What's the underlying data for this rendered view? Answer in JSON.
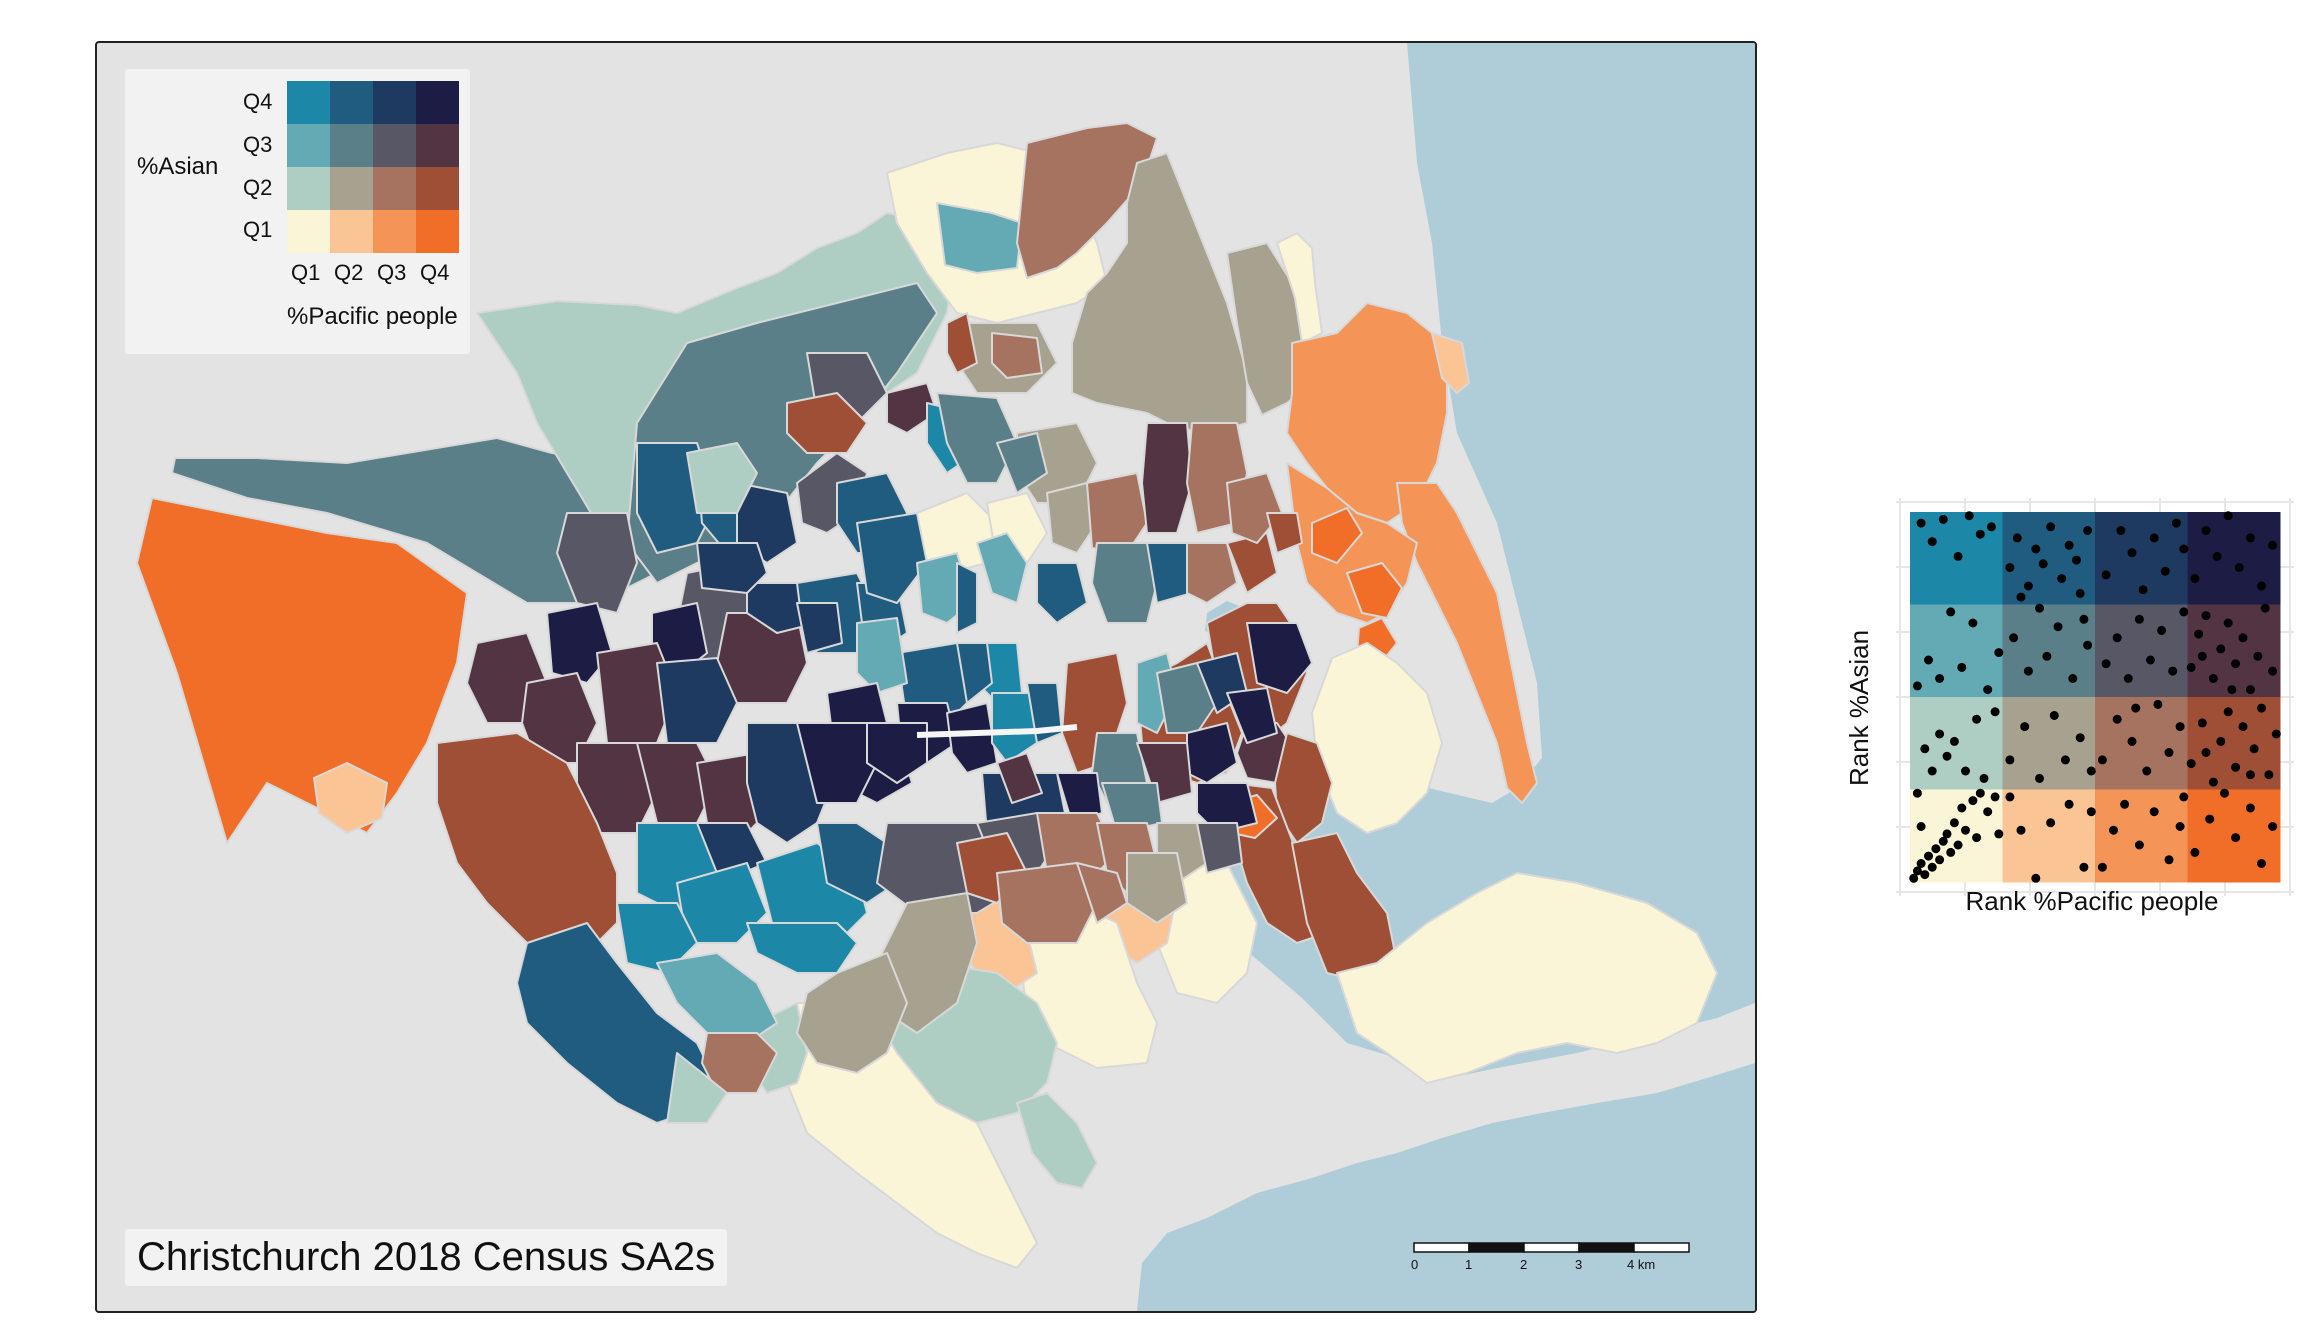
{
  "map": {
    "title": "Christchurch 2018 Census SA2s",
    "colors": {
      "water": "#afcdd8",
      "land": "#e3e3e3",
      "boundary": "#d8d8d8"
    }
  },
  "legend": {
    "y_label": "%Asian",
    "x_label": "%Pacific people",
    "y_ticks": [
      "Q4",
      "Q3",
      "Q2",
      "Q1"
    ],
    "x_ticks": [
      "Q1",
      "Q2",
      "Q3",
      "Q4"
    ],
    "palette": [
      [
        "#1c87a7",
        "#1f5c80",
        "#1f3a60",
        "#1c1c45"
      ],
      [
        "#63aab5",
        "#5b7f88",
        "#585766",
        "#523442"
      ],
      [
        "#afcec3",
        "#a7a190",
        "#a5735f",
        "#9e4f35"
      ],
      [
        "#fbf5d8",
        "#fac495",
        "#f59457",
        "#f06e27"
      ]
    ]
  },
  "scale_bar": {
    "labels": [
      "0",
      "1",
      "2",
      "3",
      "4 km"
    ]
  },
  "chart_data": {
    "type": "scatter",
    "xlabel": "Rank %Pacific people",
    "ylabel": "Rank %Asian",
    "xlim": [
      0,
      1
    ],
    "ylim": [
      0,
      1
    ],
    "grid": true,
    "points": [
      [
        0.01,
        0.01
      ],
      [
        0.02,
        0.03
      ],
      [
        0.03,
        0.05
      ],
      [
        0.04,
        0.02
      ],
      [
        0.05,
        0.07
      ],
      [
        0.06,
        0.04
      ],
      [
        0.07,
        0.09
      ],
      [
        0.08,
        0.06
      ],
      [
        0.09,
        0.11
      ],
      [
        0.1,
        0.13
      ],
      [
        0.11,
        0.08
      ],
      [
        0.12,
        0.16
      ],
      [
        0.13,
        0.1
      ],
      [
        0.14,
        0.2
      ],
      [
        0.15,
        0.14
      ],
      [
        0.17,
        0.22
      ],
      [
        0.18,
        0.12
      ],
      [
        0.19,
        0.24
      ],
      [
        0.21,
        0.19
      ],
      [
        0.23,
        0.23
      ],
      [
        0.24,
        0.13
      ],
      [
        0.02,
        0.24
      ],
      [
        0.03,
        0.15
      ],
      [
        0.04,
        0.36
      ],
      [
        0.06,
        0.3
      ],
      [
        0.08,
        0.4
      ],
      [
        0.1,
        0.34
      ],
      [
        0.12,
        0.38
      ],
      [
        0.15,
        0.3
      ],
      [
        0.18,
        0.44
      ],
      [
        0.2,
        0.28
      ],
      [
        0.23,
        0.46
      ],
      [
        0.02,
        0.53
      ],
      [
        0.05,
        0.6
      ],
      [
        0.08,
        0.55
      ],
      [
        0.11,
        0.73
      ],
      [
        0.14,
        0.58
      ],
      [
        0.17,
        0.7
      ],
      [
        0.21,
        0.52
      ],
      [
        0.24,
        0.62
      ],
      [
        0.03,
        0.97
      ],
      [
        0.06,
        0.92
      ],
      [
        0.09,
        0.98
      ],
      [
        0.13,
        0.88
      ],
      [
        0.16,
        0.99
      ],
      [
        0.19,
        0.94
      ],
      [
        0.22,
        0.96
      ],
      [
        0.27,
        0.23
      ],
      [
        0.3,
        0.14
      ],
      [
        0.34,
        0.01
      ],
      [
        0.38,
        0.16
      ],
      [
        0.43,
        0.21
      ],
      [
        0.47,
        0.04
      ],
      [
        0.49,
        0.19
      ],
      [
        0.27,
        0.33
      ],
      [
        0.31,
        0.42
      ],
      [
        0.35,
        0.28
      ],
      [
        0.39,
        0.45
      ],
      [
        0.42,
        0.33
      ],
      [
        0.46,
        0.39
      ],
      [
        0.49,
        0.3
      ],
      [
        0.28,
        0.66
      ],
      [
        0.32,
        0.57
      ],
      [
        0.35,
        0.74
      ],
      [
        0.37,
        0.61
      ],
      [
        0.4,
        0.69
      ],
      [
        0.44,
        0.55
      ],
      [
        0.47,
        0.71
      ],
      [
        0.48,
        0.64
      ],
      [
        0.27,
        0.85
      ],
      [
        0.29,
        0.93
      ],
      [
        0.32,
        0.8
      ],
      [
        0.34,
        0.9
      ],
      [
        0.36,
        0.86
      ],
      [
        0.38,
        0.96
      ],
      [
        0.41,
        0.82
      ],
      [
        0.43,
        0.91
      ],
      [
        0.45,
        0.87
      ],
      [
        0.48,
        0.95
      ],
      [
        0.3,
        0.77
      ],
      [
        0.46,
        0.78
      ],
      [
        0.52,
        0.04
      ],
      [
        0.55,
        0.14
      ],
      [
        0.58,
        0.21
      ],
      [
        0.62,
        0.1
      ],
      [
        0.66,
        0.19
      ],
      [
        0.7,
        0.06
      ],
      [
        0.73,
        0.15
      ],
      [
        0.74,
        0.23
      ],
      [
        0.52,
        0.33
      ],
      [
        0.56,
        0.44
      ],
      [
        0.6,
        0.38
      ],
      [
        0.64,
        0.3
      ],
      [
        0.67,
        0.48
      ],
      [
        0.7,
        0.35
      ],
      [
        0.73,
        0.42
      ],
      [
        0.61,
        0.47
      ],
      [
        0.53,
        0.59
      ],
      [
        0.56,
        0.66
      ],
      [
        0.59,
        0.55
      ],
      [
        0.62,
        0.71
      ],
      [
        0.65,
        0.6
      ],
      [
        0.68,
        0.68
      ],
      [
        0.71,
        0.57
      ],
      [
        0.74,
        0.73
      ],
      [
        0.53,
        0.83
      ],
      [
        0.57,
        0.95
      ],
      [
        0.6,
        0.89
      ],
      [
        0.63,
        0.79
      ],
      [
        0.66,
        0.93
      ],
      [
        0.69,
        0.84
      ],
      [
        0.72,
        0.97
      ],
      [
        0.74,
        0.9
      ],
      [
        0.77,
        0.08
      ],
      [
        0.81,
        0.17
      ],
      [
        0.85,
        0.24
      ],
      [
        0.88,
        0.12
      ],
      [
        0.92,
        0.2
      ],
      [
        0.95,
        0.05
      ],
      [
        0.98,
        0.15
      ],
      [
        0.76,
        0.32
      ],
      [
        0.79,
        0.43
      ],
      [
        0.82,
        0.27
      ],
      [
        0.84,
        0.38
      ],
      [
        0.86,
        0.46
      ],
      [
        0.88,
        0.31
      ],
      [
        0.9,
        0.42
      ],
      [
        0.93,
        0.36
      ],
      [
        0.95,
        0.47
      ],
      [
        0.97,
        0.29
      ],
      [
        0.99,
        0.4
      ],
      [
        0.8,
        0.35
      ],
      [
        0.92,
        0.29
      ],
      [
        0.76,
        0.58
      ],
      [
        0.78,
        0.67
      ],
      [
        0.8,
        0.72
      ],
      [
        0.82,
        0.55
      ],
      [
        0.84,
        0.63
      ],
      [
        0.86,
        0.7
      ],
      [
        0.88,
        0.59
      ],
      [
        0.9,
        0.66
      ],
      [
        0.92,
        0.52
      ],
      [
        0.94,
        0.61
      ],
      [
        0.96,
        0.74
      ],
      [
        0.98,
        0.57
      ],
      [
        0.79,
        0.61
      ],
      [
        0.87,
        0.52
      ],
      [
        0.77,
        0.82
      ],
      [
        0.8,
        0.95
      ],
      [
        0.83,
        0.88
      ],
      [
        0.86,
        0.99
      ],
      [
        0.89,
        0.85
      ],
      [
        0.92,
        0.93
      ],
      [
        0.95,
        0.8
      ],
      [
        0.98,
        0.91
      ]
    ]
  }
}
